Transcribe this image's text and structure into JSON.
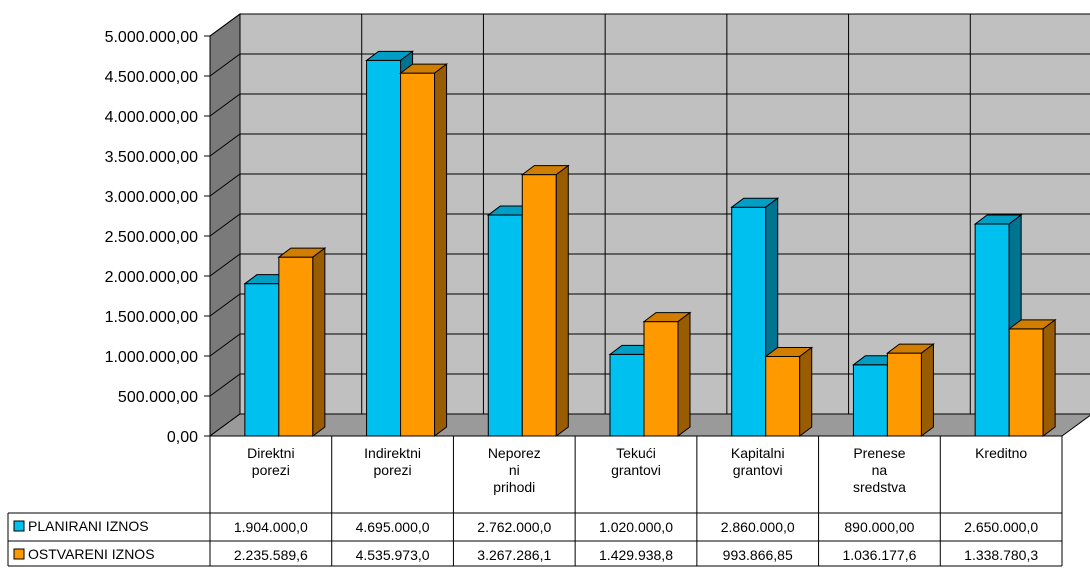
{
  "chart_data": {
    "type": "bar",
    "categories": [
      [
        "Direktni",
        "porezi"
      ],
      [
        "Indirektni",
        "porezi"
      ],
      [
        "Neporez",
        "ni",
        "prihodi"
      ],
      [
        "Tekući",
        "grantovi"
      ],
      [
        "Kapitalni",
        "grantovi"
      ],
      [
        "Prenese",
        "na",
        "sredstva"
      ],
      [
        "Kreditno"
      ]
    ],
    "ylim": [
      0,
      5000000
    ],
    "yticks": [
      "0,00",
      "500.000,00",
      "1.000.000,00",
      "1.500.000,00",
      "2.000.000,00",
      "2.500.000,00",
      "3.000.000,00",
      "3.500.000,00",
      "4.000.000,00",
      "4.500.000,00",
      "5.000.000,00"
    ],
    "grid": true,
    "legend": "bottom-left table",
    "series": [
      {
        "name": "PLANIRANI IZNOS",
        "color": "#00c0f0",
        "values": [
          1904000,
          4695000,
          2762000,
          1020000,
          2860000,
          890000,
          2650000
        ],
        "labels": [
          "1.904.000,0",
          "4.695.000,0",
          "2.762.000,0",
          "1.020.000,0",
          "2.860.000,0",
          "890.000,00",
          "2.650.000,0"
        ]
      },
      {
        "name": "OSTVARENI IZNOS",
        "color": "#ff9900",
        "values": [
          2235589.6,
          4535973.0,
          3267286.1,
          1429938.8,
          993866.85,
          1036177.6,
          1338780.3
        ],
        "labels": [
          "2.235.589,6",
          "4.535.973,0",
          "3.267.286,1",
          "1.429.938,8",
          "993.866,85",
          "1.036.177,6",
          "1.338.780,3"
        ]
      }
    ]
  }
}
